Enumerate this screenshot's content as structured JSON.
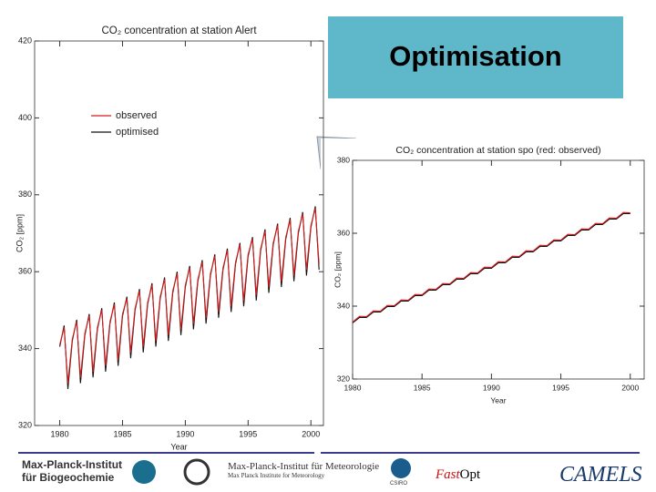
{
  "chart_data": [
    {
      "type": "line",
      "title": "CO₂ concentration at station Alert",
      "xlabel": "Year",
      "ylabel": "CO₂ [ppm]",
      "xlim": [
        1978,
        2001
      ],
      "xticks": [
        1980,
        1985,
        1990,
        1995,
        2000
      ],
      "ylim": [
        320,
        420
      ],
      "yticks": [
        320,
        340,
        360,
        380,
        400,
        420
      ],
      "legend": "upper left",
      "x": [
        1980,
        1980.35,
        1980.65,
        1981,
        1981.35,
        1981.65,
        1982,
        1982.35,
        1982.65,
        1983,
        1983.35,
        1983.65,
        1984,
        1984.35,
        1984.65,
        1985,
        1985.35,
        1985.65,
        1986,
        1986.35,
        1986.65,
        1987,
        1987.35,
        1987.65,
        1988,
        1988.35,
        1988.65,
        1989,
        1989.35,
        1989.65,
        1990,
        1990.35,
        1990.65,
        1991,
        1991.35,
        1991.65,
        1992,
        1992.35,
        1992.65,
        1993,
        1993.35,
        1993.65,
        1994,
        1994.35,
        1994.65,
        1995,
        1995.35,
        1995.65,
        1996,
        1996.35,
        1996.65,
        1997,
        1997.35,
        1997.65,
        1998,
        1998.35,
        1998.65,
        1999,
        1999.35,
        1999.65,
        2000,
        2000.35,
        2000.65
      ],
      "series": [
        {
          "name": "observed",
          "color": "#d41a1a",
          "values": [
            341,
            345.5,
            331,
            342.5,
            347,
            332.5,
            344,
            348.5,
            334,
            345.5,
            350,
            335.5,
            347,
            351.5,
            337,
            349,
            353,
            339,
            350.5,
            355,
            340.5,
            352,
            356.5,
            342,
            353.5,
            358,
            343.5,
            355,
            359.5,
            345,
            356.5,
            361,
            346.5,
            358,
            362.5,
            348,
            359.5,
            364,
            349.5,
            361,
            365.5,
            351,
            362.5,
            367,
            352.5,
            364.5,
            368.5,
            354,
            366,
            370.5,
            356,
            367.5,
            372,
            357.5,
            369,
            373.5,
            359,
            370.5,
            375,
            360.5,
            372,
            376.5,
            362
          ]
        },
        {
          "name": "optimised",
          "color": "#111111",
          "values": [
            340.5,
            346,
            329.5,
            342,
            347.5,
            331,
            343.5,
            349,
            332.5,
            345,
            350.5,
            334,
            346.5,
            352,
            335.5,
            348.5,
            353.5,
            337.5,
            350,
            355.5,
            339,
            351.5,
            357,
            340.5,
            353,
            358.5,
            342,
            354.5,
            360,
            343.5,
            356,
            361.5,
            345,
            357.5,
            363,
            346.5,
            359,
            364.5,
            348,
            360.5,
            366,
            349.5,
            362,
            367.5,
            351,
            364,
            369,
            352.5,
            365.5,
            371,
            354.5,
            367,
            372.5,
            356,
            368.5,
            374,
            357.5,
            370,
            375.5,
            359,
            371.5,
            377,
            360.5
          ]
        }
      ]
    },
    {
      "type": "line",
      "title": "CO₂ concentration at station spo (red: observed)",
      "xlabel": "Year",
      "ylabel": "CO₂ [ppm]",
      "xlim": [
        1980,
        2001
      ],
      "xticks": [
        1980,
        1985,
        1990,
        1995,
        2000
      ],
      "ylim": [
        320,
        380
      ],
      "yticks": [
        320,
        340,
        360,
        380
      ],
      "x": [
        1980,
        1980.5,
        1981,
        1981.5,
        1982,
        1982.5,
        1983,
        1983.5,
        1984,
        1984.5,
        1985,
        1985.5,
        1986,
        1986.5,
        1987,
        1987.5,
        1988,
        1988.5,
        1989,
        1989.5,
        1990,
        1990.5,
        1991,
        1991.5,
        1992,
        1992.5,
        1993,
        1993.5,
        1994,
        1994.5,
        1995,
        1995.5,
        1996,
        1996.5,
        1997,
        1997.5,
        1998,
        1998.5,
        1999,
        1999.5,
        2000
      ],
      "series": [
        {
          "color": "#d41a1a",
          "values": [
            335.6,
            337.2,
            337.1,
            338.7,
            338.6,
            340.2,
            340.1,
            341.7,
            341.6,
            343.2,
            343.1,
            344.7,
            344.6,
            346.2,
            346.1,
            347.7,
            347.6,
            349.2,
            349.1,
            350.7,
            350.6,
            352.2,
            352.1,
            353.7,
            353.6,
            355.2,
            355.1,
            356.7,
            356.6,
            358.2,
            358.1,
            359.7,
            359.6,
            361.2,
            361.1,
            362.7,
            362.6,
            364.2,
            364.1,
            365.7,
            365.6
          ]
        },
        {
          "color": "#111111",
          "values": [
            335.4,
            336.9,
            336.9,
            338.4,
            338.4,
            339.9,
            339.9,
            341.4,
            341.4,
            342.9,
            342.9,
            344.4,
            344.4,
            345.9,
            345.9,
            347.4,
            347.4,
            348.9,
            348.9,
            350.4,
            350.4,
            351.9,
            351.9,
            353.4,
            353.4,
            354.9,
            354.9,
            356.4,
            356.4,
            357.9,
            357.9,
            359.4,
            359.4,
            360.9,
            360.9,
            362.4,
            362.4,
            363.9,
            363.9,
            365.4,
            365.4
          ]
        }
      ]
    }
  ],
  "banner": "Optimisation",
  "footer": {
    "mpi_bgc_1": "Max-Planck-Institut",
    "mpi_bgc_2": "für Biogeochemie",
    "mpi_met": "Max-Planck-Institut für Meteorologie",
    "mpi_met_en": "Max Planck Institute for Meteorology",
    "csiro": "CSIRO",
    "fast": "Fast",
    "opt": "Opt",
    "camels": "CAMELS"
  }
}
